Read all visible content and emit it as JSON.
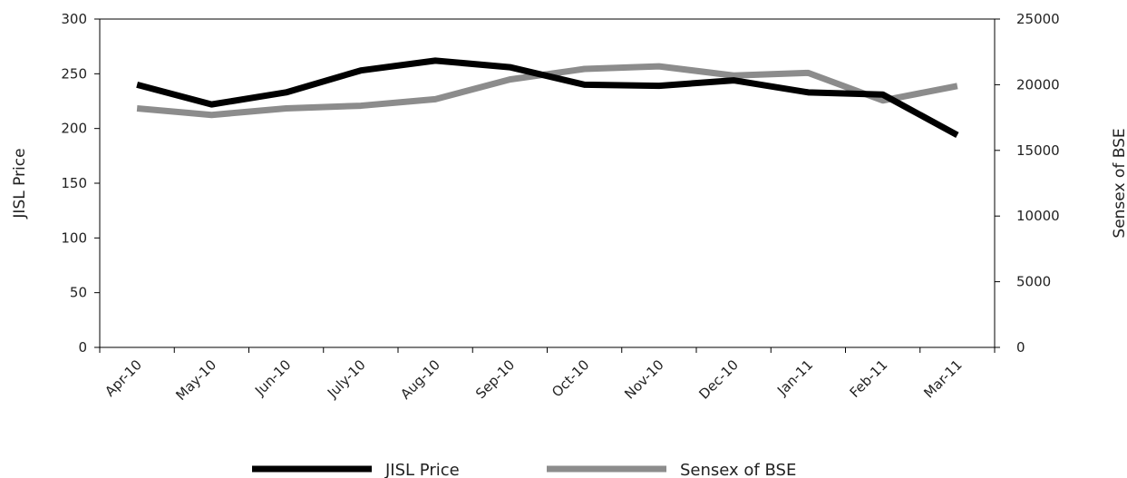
{
  "chart_data": {
    "type": "line",
    "categories": [
      "Apr-10",
      "May-10",
      "Jun-10",
      "July-10",
      "Aug-10",
      "Sep-10",
      "Oct-10",
      "Nov-10",
      "Dec-10",
      "Jan-11",
      "Feb-11",
      "Mar-11"
    ],
    "series": [
      {
        "name": "JISL Price",
        "axis": "left",
        "color": "#000000",
        "values": [
          240,
          222,
          233,
          253,
          262,
          256,
          240,
          239,
          244,
          233,
          231,
          194
        ]
      },
      {
        "name": "Sensex of BSE",
        "axis": "right",
        "color": "#8c8c8c",
        "values": [
          18200,
          17700,
          18200,
          18400,
          18900,
          20400,
          21200,
          21400,
          20700,
          20900,
          18800,
          19900
        ]
      }
    ],
    "ylabel": "JISL Price",
    "y2label": "Sensex of BSE",
    "ylim": [
      0,
      300
    ],
    "yticks": [
      0,
      50,
      100,
      150,
      200,
      250,
      300
    ],
    "y2lim": [
      0,
      25000
    ],
    "y2ticks": [
      0,
      5000,
      10000,
      15000,
      20000,
      25000
    ],
    "grid": false,
    "legend_position": "bottom"
  }
}
